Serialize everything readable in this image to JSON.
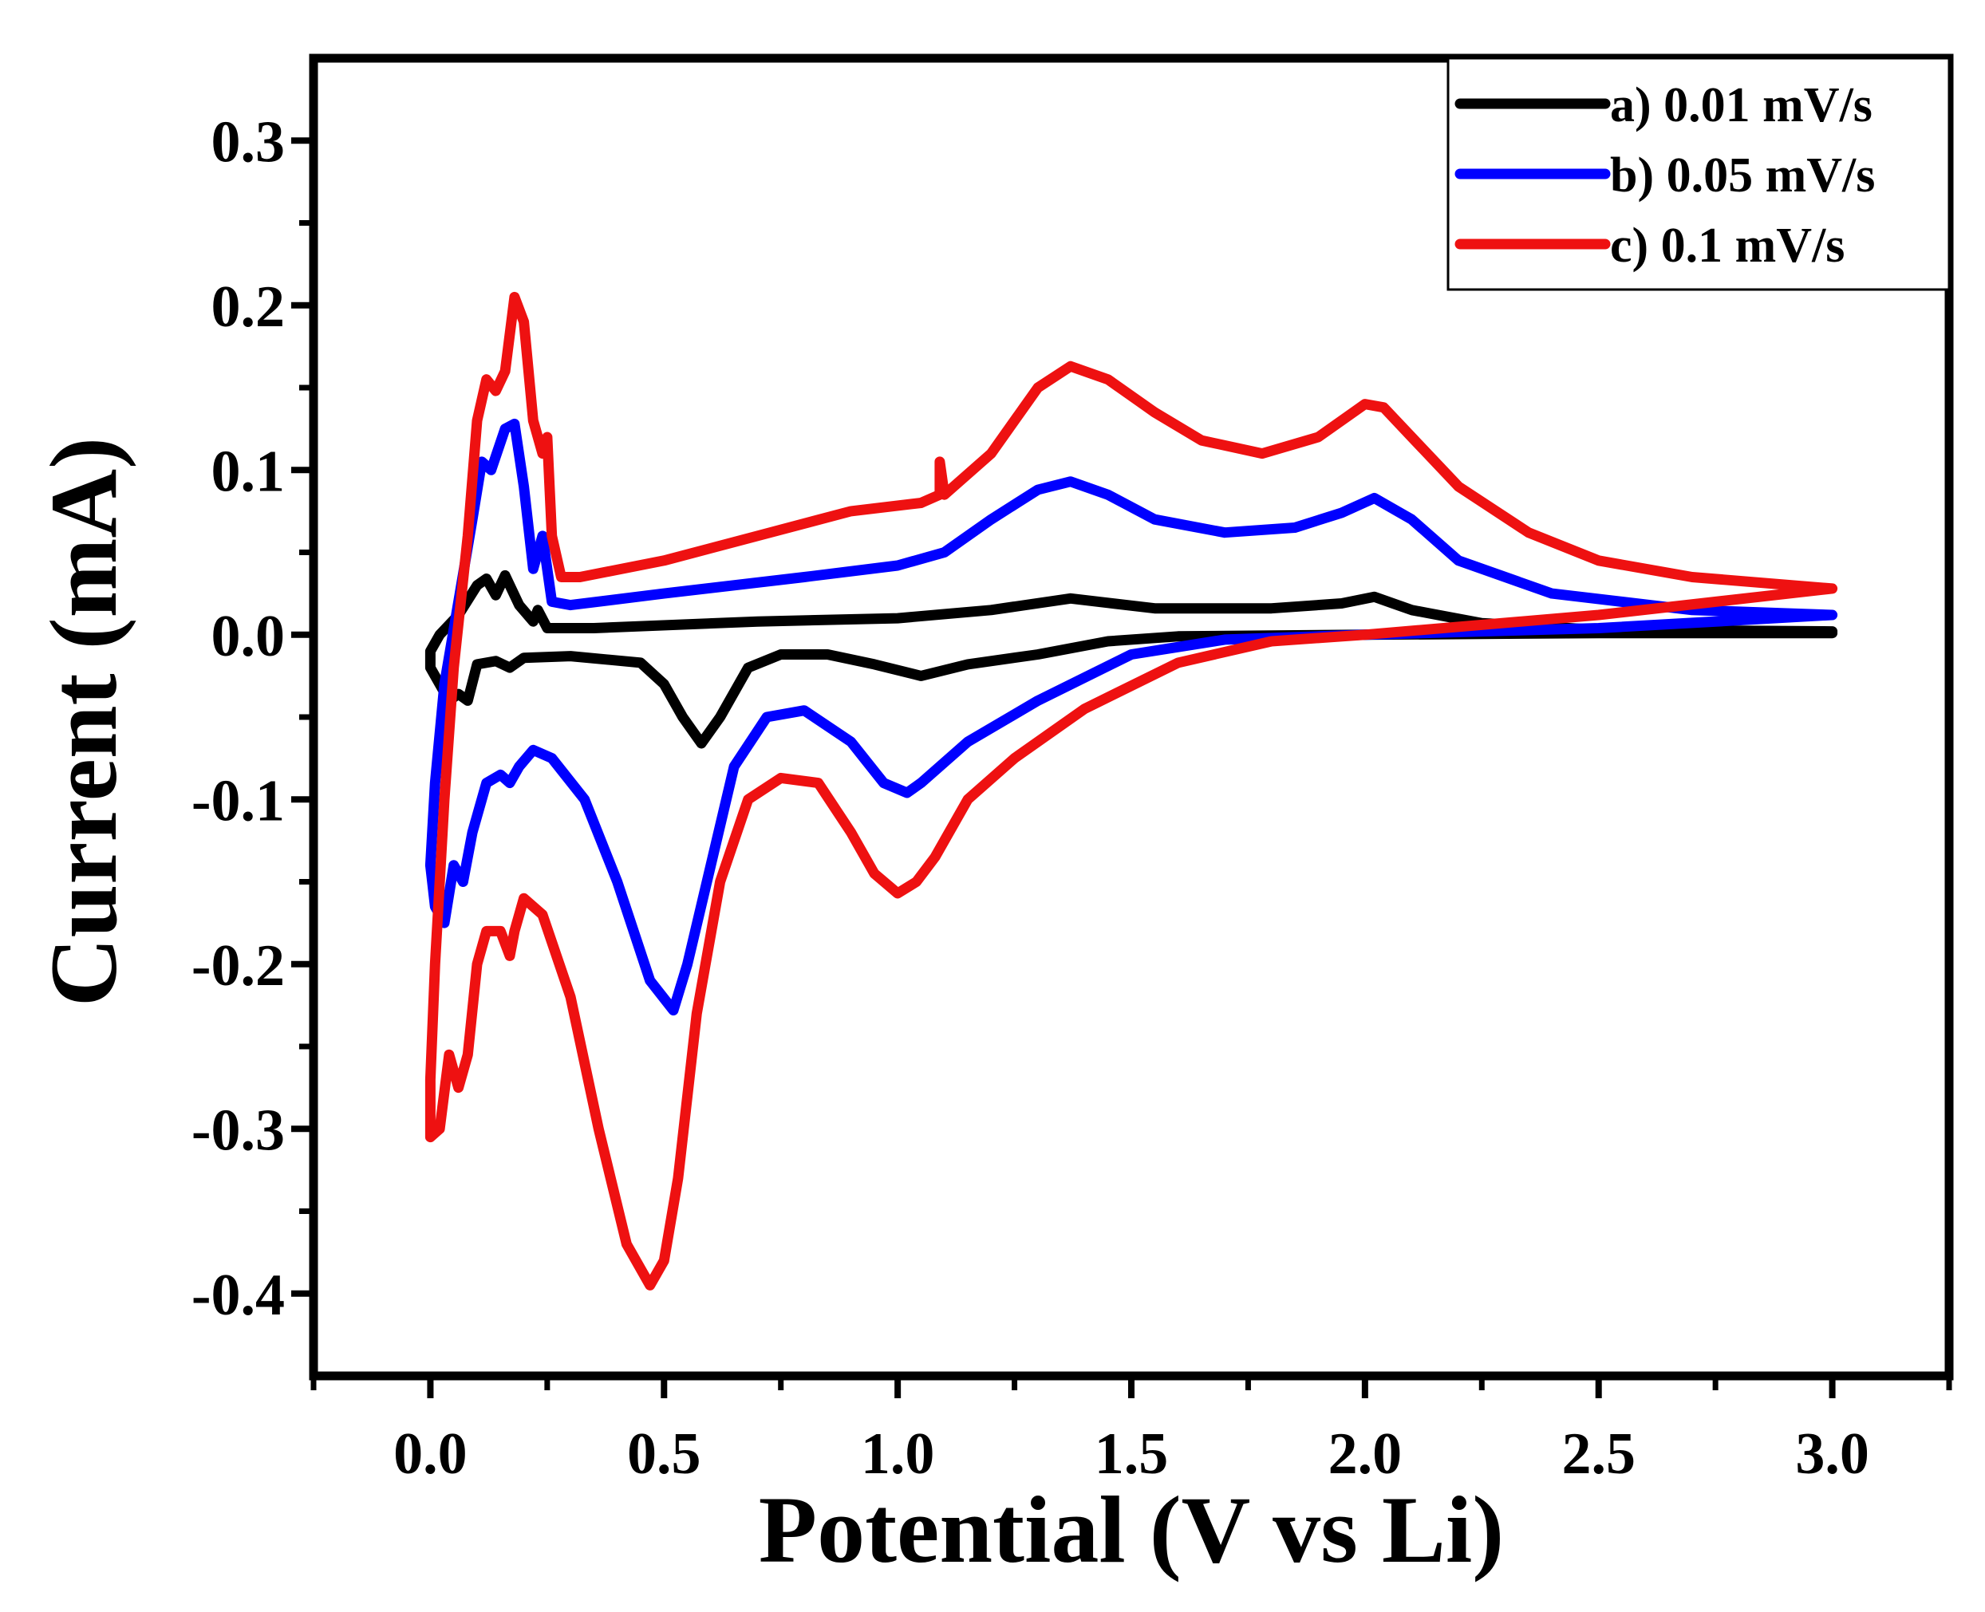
{
  "chart_data": {
    "type": "line",
    "title": "",
    "xlabel": "Potential (V vs Li)",
    "ylabel": "Current (mA)",
    "xlim": [
      -0.25,
      3.25
    ],
    "ylim": [
      -0.45,
      0.35
    ],
    "x_ticks": [
      0.0,
      0.5,
      1.0,
      1.5,
      2.0,
      2.5,
      3.0
    ],
    "x_tick_labels": [
      "0.0",
      "0.5",
      "1.0",
      "1.5",
      "2.0",
      "2.5",
      "3.0"
    ],
    "y_ticks": [
      -0.4,
      -0.3,
      -0.2,
      -0.1,
      0.0,
      0.1,
      0.2,
      0.3
    ],
    "y_tick_labels": [
      "-0.4",
      "-0.3",
      "-0.2",
      "-0.1",
      "0.0",
      "0.1",
      "0.2",
      "0.3"
    ],
    "grid": false,
    "legend_position": "top-right",
    "series": [
      {
        "name": "a) 0.01 mV/s",
        "color": "#000000",
        "points": [
          [
            3.0,
            0.001
          ],
          [
            2.5,
            0.001
          ],
          [
            2.0,
            0.0
          ],
          [
            1.6,
            -0.001
          ],
          [
            1.45,
            -0.004
          ],
          [
            1.3,
            -0.012
          ],
          [
            1.15,
            -0.018
          ],
          [
            1.05,
            -0.025
          ],
          [
            0.95,
            -0.018
          ],
          [
            0.85,
            -0.012
          ],
          [
            0.75,
            -0.012
          ],
          [
            0.68,
            -0.02
          ],
          [
            0.62,
            -0.05
          ],
          [
            0.58,
            -0.066
          ],
          [
            0.54,
            -0.05
          ],
          [
            0.5,
            -0.03
          ],
          [
            0.45,
            -0.017
          ],
          [
            0.3,
            -0.013
          ],
          [
            0.2,
            -0.014
          ],
          [
            0.17,
            -0.02
          ],
          [
            0.14,
            -0.016
          ],
          [
            0.1,
            -0.018
          ],
          [
            0.08,
            -0.04
          ],
          [
            0.06,
            -0.036
          ],
          [
            0.04,
            -0.04
          ],
          [
            0.02,
            -0.03
          ],
          [
            0.0,
            -0.02
          ],
          [
            0.0,
            -0.01
          ],
          [
            0.02,
            0.0
          ],
          [
            0.06,
            0.012
          ],
          [
            0.1,
            0.03
          ],
          [
            0.12,
            0.034
          ],
          [
            0.14,
            0.024
          ],
          [
            0.16,
            0.036
          ],
          [
            0.19,
            0.018
          ],
          [
            0.22,
            0.008
          ],
          [
            0.23,
            0.015
          ],
          [
            0.25,
            0.004
          ],
          [
            0.35,
            0.004
          ],
          [
            0.7,
            0.008
          ],
          [
            1.0,
            0.01
          ],
          [
            1.2,
            0.015
          ],
          [
            1.37,
            0.022
          ],
          [
            1.55,
            0.016
          ],
          [
            1.8,
            0.016
          ],
          [
            1.95,
            0.019
          ],
          [
            2.02,
            0.023
          ],
          [
            2.1,
            0.015
          ],
          [
            2.25,
            0.007
          ],
          [
            2.5,
            0.003
          ],
          [
            3.0,
            0.002
          ]
        ]
      },
      {
        "name": "b) 0.05 mV/s",
        "color": "#0000ff",
        "points": [
          [
            3.0,
            0.012
          ],
          [
            2.5,
            0.004
          ],
          [
            2.0,
            0.0
          ],
          [
            1.7,
            -0.003
          ],
          [
            1.5,
            -0.012
          ],
          [
            1.3,
            -0.04
          ],
          [
            1.15,
            -0.065
          ],
          [
            1.05,
            -0.09
          ],
          [
            1.02,
            -0.096
          ],
          [
            0.97,
            -0.09
          ],
          [
            0.9,
            -0.065
          ],
          [
            0.8,
            -0.046
          ],
          [
            0.72,
            -0.05
          ],
          [
            0.65,
            -0.08
          ],
          [
            0.6,
            -0.14
          ],
          [
            0.55,
            -0.2
          ],
          [
            0.52,
            -0.228
          ],
          [
            0.47,
            -0.21
          ],
          [
            0.4,
            -0.15
          ],
          [
            0.33,
            -0.1
          ],
          [
            0.26,
            -0.075
          ],
          [
            0.22,
            -0.07
          ],
          [
            0.19,
            -0.08
          ],
          [
            0.17,
            -0.09
          ],
          [
            0.15,
            -0.085
          ],
          [
            0.12,
            -0.09
          ],
          [
            0.09,
            -0.12
          ],
          [
            0.07,
            -0.15
          ],
          [
            0.05,
            -0.14
          ],
          [
            0.03,
            -0.175
          ],
          [
            0.01,
            -0.165
          ],
          [
            0.0,
            -0.14
          ],
          [
            0.01,
            -0.09
          ],
          [
            0.03,
            -0.03
          ],
          [
            0.06,
            0.02
          ],
          [
            0.09,
            0.07
          ],
          [
            0.11,
            0.105
          ],
          [
            0.13,
            0.1
          ],
          [
            0.16,
            0.125
          ],
          [
            0.18,
            0.128
          ],
          [
            0.2,
            0.09
          ],
          [
            0.22,
            0.04
          ],
          [
            0.24,
            0.06
          ],
          [
            0.26,
            0.02
          ],
          [
            0.3,
            0.018
          ],
          [
            0.5,
            0.025
          ],
          [
            0.8,
            0.035
          ],
          [
            1.0,
            0.042
          ],
          [
            1.1,
            0.05
          ],
          [
            1.2,
            0.07
          ],
          [
            1.3,
            0.088
          ],
          [
            1.37,
            0.093
          ],
          [
            1.45,
            0.085
          ],
          [
            1.55,
            0.07
          ],
          [
            1.7,
            0.062
          ],
          [
            1.85,
            0.065
          ],
          [
            1.95,
            0.074
          ],
          [
            2.02,
            0.083
          ],
          [
            2.1,
            0.07
          ],
          [
            2.2,
            0.045
          ],
          [
            2.4,
            0.025
          ],
          [
            2.7,
            0.015
          ],
          [
            3.0,
            0.012
          ]
        ]
      },
      {
        "name": "c) 0.1 mV/s",
        "color": "#ee1111",
        "points": [
          [
            3.0,
            0.028
          ],
          [
            2.5,
            0.012
          ],
          [
            2.0,
            0.0
          ],
          [
            1.8,
            -0.004
          ],
          [
            1.6,
            -0.017
          ],
          [
            1.4,
            -0.045
          ],
          [
            1.25,
            -0.075
          ],
          [
            1.15,
            -0.1
          ],
          [
            1.08,
            -0.135
          ],
          [
            1.04,
            -0.15
          ],
          [
            1.0,
            -0.157
          ],
          [
            0.95,
            -0.145
          ],
          [
            0.9,
            -0.12
          ],
          [
            0.83,
            -0.09
          ],
          [
            0.75,
            -0.087
          ],
          [
            0.68,
            -0.1
          ],
          [
            0.62,
            -0.15
          ],
          [
            0.57,
            -0.23
          ],
          [
            0.53,
            -0.33
          ],
          [
            0.5,
            -0.38
          ],
          [
            0.47,
            -0.395
          ],
          [
            0.42,
            -0.37
          ],
          [
            0.36,
            -0.3
          ],
          [
            0.3,
            -0.22
          ],
          [
            0.24,
            -0.17
          ],
          [
            0.2,
            -0.16
          ],
          [
            0.18,
            -0.18
          ],
          [
            0.17,
            -0.195
          ],
          [
            0.15,
            -0.18
          ],
          [
            0.12,
            -0.18
          ],
          [
            0.1,
            -0.2
          ],
          [
            0.08,
            -0.255
          ],
          [
            0.06,
            -0.275
          ],
          [
            0.04,
            -0.255
          ],
          [
            0.02,
            -0.3
          ],
          [
            0.0,
            -0.305
          ],
          [
            0.0,
            -0.27
          ],
          [
            0.01,
            -0.2
          ],
          [
            0.03,
            -0.1
          ],
          [
            0.05,
            -0.02
          ],
          [
            0.08,
            0.06
          ],
          [
            0.1,
            0.13
          ],
          [
            0.12,
            0.155
          ],
          [
            0.14,
            0.148
          ],
          [
            0.16,
            0.16
          ],
          [
            0.18,
            0.205
          ],
          [
            0.2,
            0.19
          ],
          [
            0.22,
            0.13
          ],
          [
            0.24,
            0.11
          ],
          [
            0.25,
            0.12
          ],
          [
            0.26,
            0.06
          ],
          [
            0.28,
            0.035
          ],
          [
            0.32,
            0.035
          ],
          [
            0.5,
            0.045
          ],
          [
            0.7,
            0.06
          ],
          [
            0.9,
            0.075
          ],
          [
            1.05,
            0.08
          ],
          [
            1.09,
            0.085
          ],
          [
            1.09,
            0.105
          ],
          [
            1.1,
            0.085
          ],
          [
            1.2,
            0.11
          ],
          [
            1.3,
            0.15
          ],
          [
            1.37,
            0.163
          ],
          [
            1.45,
            0.155
          ],
          [
            1.55,
            0.135
          ],
          [
            1.65,
            0.118
          ],
          [
            1.78,
            0.11
          ],
          [
            1.9,
            0.12
          ],
          [
            2.0,
            0.14
          ],
          [
            2.04,
            0.138
          ],
          [
            2.1,
            0.12
          ],
          [
            2.2,
            0.09
          ],
          [
            2.35,
            0.062
          ],
          [
            2.5,
            0.045
          ],
          [
            2.7,
            0.035
          ],
          [
            3.0,
            0.028
          ]
        ]
      }
    ]
  }
}
